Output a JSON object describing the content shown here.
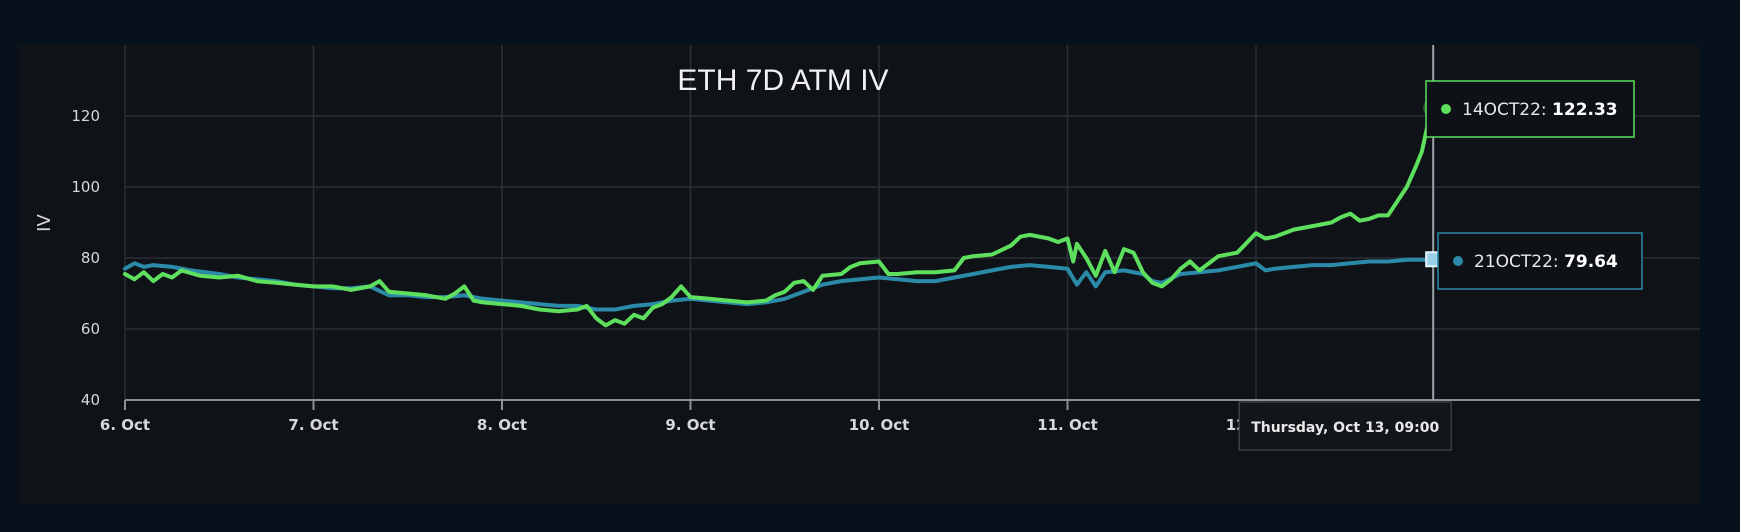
{
  "chart_data": {
    "type": "line",
    "title": "ETH 7D ATM IV",
    "ylabel": "IV",
    "xlabel": "",
    "ylim": [
      40,
      140
    ],
    "xlim": [
      0,
      7.0
    ],
    "x_unit": "days since Oct 6, 00:00",
    "y_ticks": [
      40,
      60,
      80,
      100,
      120
    ],
    "x_ticks": [
      {
        "label": "6. Oct",
        "x": 0
      },
      {
        "label": "7. Oct",
        "x": 1
      },
      {
        "label": "8. Oct",
        "x": 2
      },
      {
        "label": "9. Oct",
        "x": 3
      },
      {
        "label": "10. Oct",
        "x": 4
      },
      {
        "label": "11. Oct",
        "x": 5
      },
      {
        "label": "12. Oct",
        "x": 6
      }
    ],
    "grid": true,
    "crosshair_x": 6.94,
    "crosshair_label": "Thursday, Oct 13, 09:00",
    "series": [
      {
        "name": "14OCT22",
        "color": "#5ee05e",
        "hover_value": "122.33",
        "points": [
          [
            0.0,
            75.5
          ],
          [
            0.05,
            74.0
          ],
          [
            0.1,
            76.0
          ],
          [
            0.15,
            73.5
          ],
          [
            0.2,
            75.5
          ],
          [
            0.25,
            74.5
          ],
          [
            0.3,
            76.5
          ],
          [
            0.4,
            75.0
          ],
          [
            0.5,
            74.5
          ],
          [
            0.6,
            75.0
          ],
          [
            0.7,
            73.5
          ],
          [
            0.8,
            73.0
          ],
          [
            0.9,
            72.5
          ],
          [
            1.0,
            72.0
          ],
          [
            1.1,
            72.0
          ],
          [
            1.2,
            71.0
          ],
          [
            1.3,
            72.0
          ],
          [
            1.35,
            73.5
          ],
          [
            1.4,
            70.5
          ],
          [
            1.5,
            70.0
          ],
          [
            1.6,
            69.5
          ],
          [
            1.7,
            68.5
          ],
          [
            1.75,
            70.0
          ],
          [
            1.8,
            72.0
          ],
          [
            1.85,
            68.0
          ],
          [
            1.9,
            67.5
          ],
          [
            2.0,
            67.0
          ],
          [
            2.1,
            66.5
          ],
          [
            2.2,
            65.5
          ],
          [
            2.3,
            65.0
          ],
          [
            2.4,
            65.5
          ],
          [
            2.45,
            66.5
          ],
          [
            2.5,
            63.0
          ],
          [
            2.55,
            61.0
          ],
          [
            2.6,
            62.5
          ],
          [
            2.65,
            61.5
          ],
          [
            2.7,
            64.0
          ],
          [
            2.75,
            63.0
          ],
          [
            2.8,
            66.0
          ],
          [
            2.85,
            67.0
          ],
          [
            2.9,
            69.0
          ],
          [
            2.95,
            72.0
          ],
          [
            3.0,
            69.0
          ],
          [
            3.1,
            68.5
          ],
          [
            3.2,
            68.0
          ],
          [
            3.3,
            67.5
          ],
          [
            3.4,
            68.0
          ],
          [
            3.45,
            69.5
          ],
          [
            3.5,
            70.5
          ],
          [
            3.55,
            73.0
          ],
          [
            3.6,
            73.5
          ],
          [
            3.65,
            71.0
          ],
          [
            3.7,
            75.0
          ],
          [
            3.8,
            75.5
          ],
          [
            3.85,
            77.5
          ],
          [
            3.9,
            78.5
          ],
          [
            4.0,
            79.0
          ],
          [
            4.05,
            75.5
          ],
          [
            4.1,
            75.5
          ],
          [
            4.2,
            76.0
          ],
          [
            4.3,
            76.0
          ],
          [
            4.4,
            76.5
          ],
          [
            4.45,
            80.0
          ],
          [
            4.5,
            80.5
          ],
          [
            4.6,
            81.0
          ],
          [
            4.7,
            83.5
          ],
          [
            4.75,
            86.0
          ],
          [
            4.8,
            86.5
          ],
          [
            4.9,
            85.5
          ],
          [
            4.95,
            84.5
          ],
          [
            5.0,
            85.5
          ],
          [
            5.03,
            79.0
          ],
          [
            5.05,
            84.0
          ],
          [
            5.1,
            80.0
          ],
          [
            5.15,
            75.0
          ],
          [
            5.2,
            82.0
          ],
          [
            5.25,
            76.0
          ],
          [
            5.3,
            82.5
          ],
          [
            5.35,
            81.5
          ],
          [
            5.4,
            76.0
          ],
          [
            5.45,
            73.0
          ],
          [
            5.5,
            72.0
          ],
          [
            5.55,
            74.0
          ],
          [
            5.6,
            77.0
          ],
          [
            5.65,
            79.0
          ],
          [
            5.7,
            76.5
          ],
          [
            5.8,
            80.5
          ],
          [
            5.9,
            81.5
          ],
          [
            6.0,
            87.0
          ],
          [
            6.05,
            85.5
          ],
          [
            6.1,
            86.0
          ],
          [
            6.2,
            88.0
          ],
          [
            6.3,
            89.0
          ],
          [
            6.4,
            90.0
          ],
          [
            6.45,
            91.5
          ],
          [
            6.5,
            92.5
          ],
          [
            6.55,
            90.5
          ],
          [
            6.6,
            91.0
          ],
          [
            6.65,
            92.0
          ],
          [
            6.7,
            92.0
          ],
          [
            6.75,
            96.0
          ],
          [
            6.8,
            100.0
          ],
          [
            6.85,
            106.0
          ],
          [
            6.88,
            110.0
          ],
          [
            6.9,
            115.0
          ],
          [
            6.92,
            119.5
          ],
          [
            6.93,
            125.0
          ],
          [
            6.94,
            122.33
          ]
        ]
      },
      {
        "name": "21OCT22",
        "color": "#2a8aa8",
        "hover_value": "79.64",
        "points": [
          [
            0.0,
            77.0
          ],
          [
            0.05,
            78.5
          ],
          [
            0.1,
            77.5
          ],
          [
            0.15,
            78.0
          ],
          [
            0.25,
            77.5
          ],
          [
            0.35,
            76.5
          ],
          [
            0.5,
            75.5
          ],
          [
            0.6,
            74.5
          ],
          [
            0.7,
            74.0
          ],
          [
            0.8,
            73.5
          ],
          [
            0.9,
            72.5
          ],
          [
            1.0,
            72.0
          ],
          [
            1.1,
            71.5
          ],
          [
            1.2,
            71.5
          ],
          [
            1.3,
            72.0
          ],
          [
            1.4,
            69.5
          ],
          [
            1.5,
            69.5
          ],
          [
            1.6,
            69.0
          ],
          [
            1.7,
            69.0
          ],
          [
            1.8,
            69.5
          ],
          [
            1.9,
            68.5
          ],
          [
            2.0,
            68.0
          ],
          [
            2.1,
            67.5
          ],
          [
            2.2,
            67.0
          ],
          [
            2.3,
            66.5
          ],
          [
            2.4,
            66.5
          ],
          [
            2.5,
            65.5
          ],
          [
            2.6,
            65.5
          ],
          [
            2.7,
            66.5
          ],
          [
            2.8,
            67.0
          ],
          [
            2.9,
            68.0
          ],
          [
            3.0,
            68.5
          ],
          [
            3.1,
            68.0
          ],
          [
            3.2,
            67.5
          ],
          [
            3.3,
            67.0
          ],
          [
            3.4,
            67.5
          ],
          [
            3.5,
            68.5
          ],
          [
            3.6,
            70.5
          ],
          [
            3.7,
            72.5
          ],
          [
            3.8,
            73.5
          ],
          [
            3.9,
            74.0
          ],
          [
            4.0,
            74.5
          ],
          [
            4.1,
            74.0
          ],
          [
            4.2,
            73.5
          ],
          [
            4.3,
            73.5
          ],
          [
            4.4,
            74.5
          ],
          [
            4.5,
            75.5
          ],
          [
            4.6,
            76.5
          ],
          [
            4.7,
            77.5
          ],
          [
            4.8,
            78.0
          ],
          [
            4.9,
            77.5
          ],
          [
            5.0,
            77.0
          ],
          [
            5.05,
            72.5
          ],
          [
            5.1,
            76.0
          ],
          [
            5.15,
            72.0
          ],
          [
            5.2,
            76.0
          ],
          [
            5.3,
            76.5
          ],
          [
            5.4,
            75.5
          ],
          [
            5.45,
            73.5
          ],
          [
            5.5,
            73.0
          ],
          [
            5.6,
            75.5
          ],
          [
            5.7,
            76.0
          ],
          [
            5.8,
            76.5
          ],
          [
            5.9,
            77.5
          ],
          [
            6.0,
            78.5
          ],
          [
            6.05,
            76.5
          ],
          [
            6.1,
            77.0
          ],
          [
            6.2,
            77.5
          ],
          [
            6.3,
            78.0
          ],
          [
            6.4,
            78.0
          ],
          [
            6.5,
            78.5
          ],
          [
            6.6,
            79.0
          ],
          [
            6.7,
            79.0
          ],
          [
            6.8,
            79.5
          ],
          [
            6.9,
            79.5
          ],
          [
            6.94,
            79.64
          ]
        ]
      }
    ]
  }
}
